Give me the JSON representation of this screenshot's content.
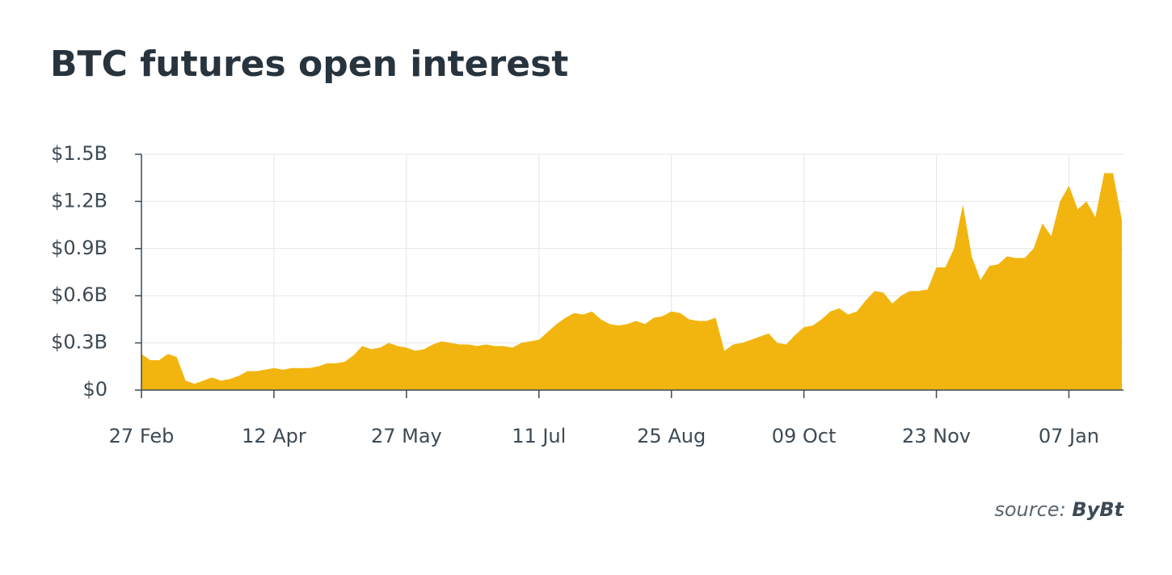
{
  "chart_data": {
    "type": "area",
    "title": "BTC futures open interest",
    "source_prefix": "source:",
    "source": "ByBt",
    "categories": [
      "27 Feb",
      null,
      null,
      null,
      null,
      null,
      null,
      null,
      null,
      null,
      null,
      null,
      null,
      null,
      null,
      "12 Apr",
      null,
      null,
      null,
      null,
      null,
      null,
      null,
      null,
      null,
      null,
      null,
      null,
      null,
      null,
      "27 May",
      null,
      null,
      null,
      null,
      null,
      null,
      null,
      null,
      null,
      null,
      null,
      null,
      null,
      null,
      "11 Jul",
      null,
      null,
      null,
      null,
      null,
      null,
      null,
      null,
      null,
      null,
      null,
      null,
      null,
      null,
      "25 Aug",
      null,
      null,
      null,
      null,
      null,
      null,
      null,
      null,
      null,
      null,
      null,
      null,
      null,
      null,
      "09 Oct",
      null,
      null,
      null,
      null,
      null,
      null,
      null,
      null,
      null,
      null,
      null,
      null,
      null,
      null,
      "23 Nov",
      null,
      null,
      null,
      null,
      null,
      null,
      null,
      null,
      null,
      null,
      null,
      null,
      null,
      null,
      "07 Jan",
      null,
      null,
      null,
      null,
      null,
      null
    ],
    "values": [
      0.23,
      0.19,
      0.19,
      0.23,
      0.21,
      0.06,
      0.04,
      0.06,
      0.08,
      0.06,
      0.07,
      0.09,
      0.12,
      0.12,
      0.13,
      0.14,
      0.13,
      0.14,
      0.14,
      0.14,
      0.15,
      0.17,
      0.17,
      0.18,
      0.22,
      0.28,
      0.26,
      0.27,
      0.3,
      0.28,
      0.27,
      0.25,
      0.26,
      0.29,
      0.31,
      0.3,
      0.29,
      0.29,
      0.28,
      0.29,
      0.28,
      0.28,
      0.27,
      0.3,
      0.31,
      0.32,
      0.37,
      0.42,
      0.46,
      0.49,
      0.48,
      0.5,
      0.45,
      0.42,
      0.41,
      0.42,
      0.44,
      0.42,
      0.46,
      0.47,
      0.5,
      0.49,
      0.45,
      0.44,
      0.44,
      0.46,
      0.25,
      0.29,
      0.3,
      0.32,
      0.34,
      0.36,
      0.3,
      0.29,
      0.35,
      0.4,
      0.41,
      0.45,
      0.5,
      0.52,
      0.48,
      0.5,
      0.57,
      0.63,
      0.62,
      0.55,
      0.6,
      0.63,
      0.63,
      0.64,
      0.78,
      0.78,
      0.9,
      1.18,
      0.85,
      0.7,
      0.79,
      0.8,
      0.85,
      0.84,
      0.84,
      0.9,
      1.06,
      0.98,
      1.2,
      1.3,
      1.15,
      1.2,
      1.1,
      1.38,
      1.38,
      1.08
    ],
    "color": "#f2b50f",
    "ylim": [
      0,
      1.5
    ],
    "yticks": [
      {
        "value": 0,
        "label": "$0"
      },
      {
        "value": 0.3,
        "label": "$0.3B"
      },
      {
        "value": 0.6,
        "label": "$0.6B"
      },
      {
        "value": 0.9,
        "label": "$0.9B"
      },
      {
        "value": 1.2,
        "label": "$1.2B"
      },
      {
        "value": 1.5,
        "label": "$1.5B"
      }
    ],
    "grid": true
  }
}
